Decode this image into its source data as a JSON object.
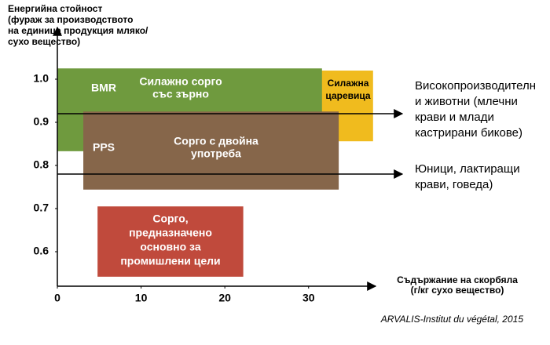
{
  "chart_data": {
    "type": "range-box",
    "ylabel": [
      "Енергийна стойност",
      "(фураж за производството",
      "на единица продукция мляко/",
      "сухо вещество)"
    ],
    "xlabel": [
      "Съдържание на скорбяла",
      "(г/кг сухо вещество)"
    ],
    "source": "ARVALIS-Institut du végétal, 2015",
    "xlim": [
      0,
      38
    ],
    "ylim": [
      0.52,
      1.12
    ],
    "xticks": [
      0,
      10,
      20,
      30
    ],
    "yticks": [
      0.6,
      0.7,
      0.8,
      0.9,
      {
        "value": 1,
        "label": "1.0"
      }
    ],
    "boxes": [
      {
        "x": [
          22.2,
          37.7
        ],
        "y": [
          0.856,
          1.02
        ],
        "color": "#f0bb1e",
        "labels": [
          [
            "Силажна",
            "царевица"
          ]
        ]
      },
      {
        "x": [
          0,
          31.6
        ],
        "y": [
          0.833,
          1.025
        ],
        "color": "#6f9a3e",
        "labels": [
          [
            "BMR"
          ],
          [
            "Силажно сорго",
            "със зърно"
          ]
        ]
      },
      {
        "x": [
          3.1,
          33.6
        ],
        "y": [
          0.744,
          0.925
        ],
        "color": "#86664a",
        "labels": [
          [
            "PPS"
          ],
          [
            "Сорго с двойна",
            "употреба"
          ]
        ]
      },
      {
        "x": [
          4.8,
          22.2
        ],
        "y": [
          0.542,
          0.705
        ],
        "color": "#c04a3c",
        "labels": [
          [
            "Сорго,",
            "предназначено",
            "основно за",
            "промишлени цели"
          ]
        ]
      }
    ],
    "arrows": [
      {
        "y": 0.92,
        "label": [
          "Високопроизводителн",
          "и животни (млечни",
          "крави и млади",
          "кастрирани бикове)"
        ]
      },
      {
        "y": 0.78,
        "label": [
          "Юници, лактиращи",
          "крави, говеда)"
        ]
      }
    ]
  }
}
